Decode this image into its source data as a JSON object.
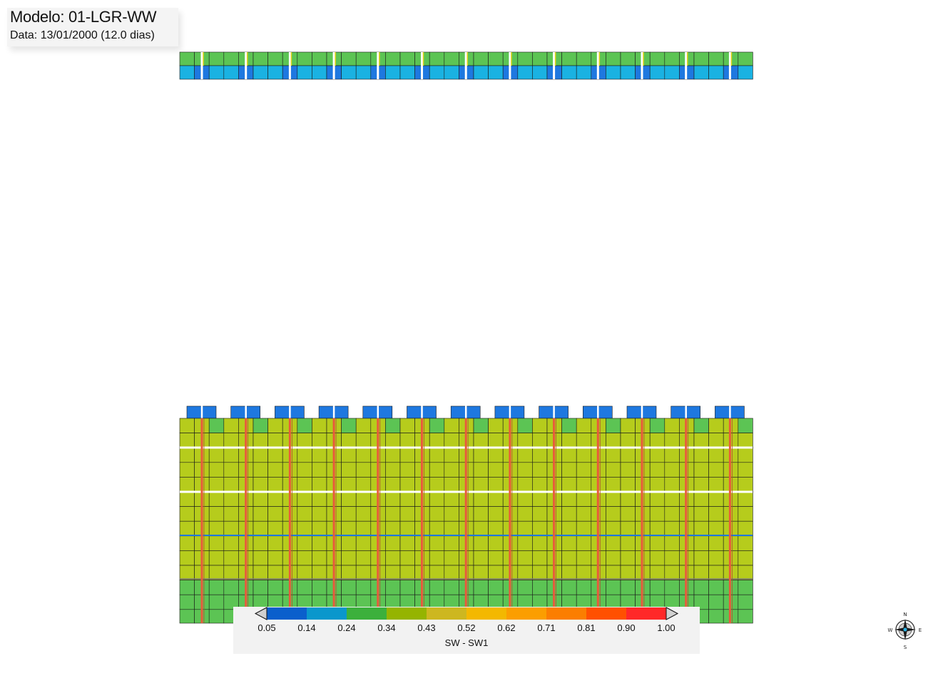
{
  "header": {
    "model_title": "Modelo: 01-LGR-WW",
    "date_line": "Data: 13/01/2000 (12.0 dias)"
  },
  "colorbar": {
    "label": "SW - SW1",
    "ticks": [
      "0.05",
      "0.14",
      "0.24",
      "0.34",
      "0.43",
      "0.52",
      "0.62",
      "0.71",
      "0.81",
      "0.90",
      "1.00"
    ],
    "colors": [
      "#0a5fcc",
      "#0a97cc",
      "#3cb03c",
      "#95b400",
      "#cdb720",
      "#f3b800",
      "#fb9e00",
      "#fb7e00",
      "#ff5000",
      "#ff2828"
    ]
  },
  "grid_colors": {
    "light_blue": "#1ab2e2",
    "dark_blue": "#1e78e0",
    "green": "#5cc454",
    "olive": "#b6cc1c",
    "well_red": "#e85a3c",
    "grid_line": "#1a1a1a"
  },
  "compass": {
    "letters": [
      "N",
      "E",
      "S",
      "W"
    ]
  }
}
